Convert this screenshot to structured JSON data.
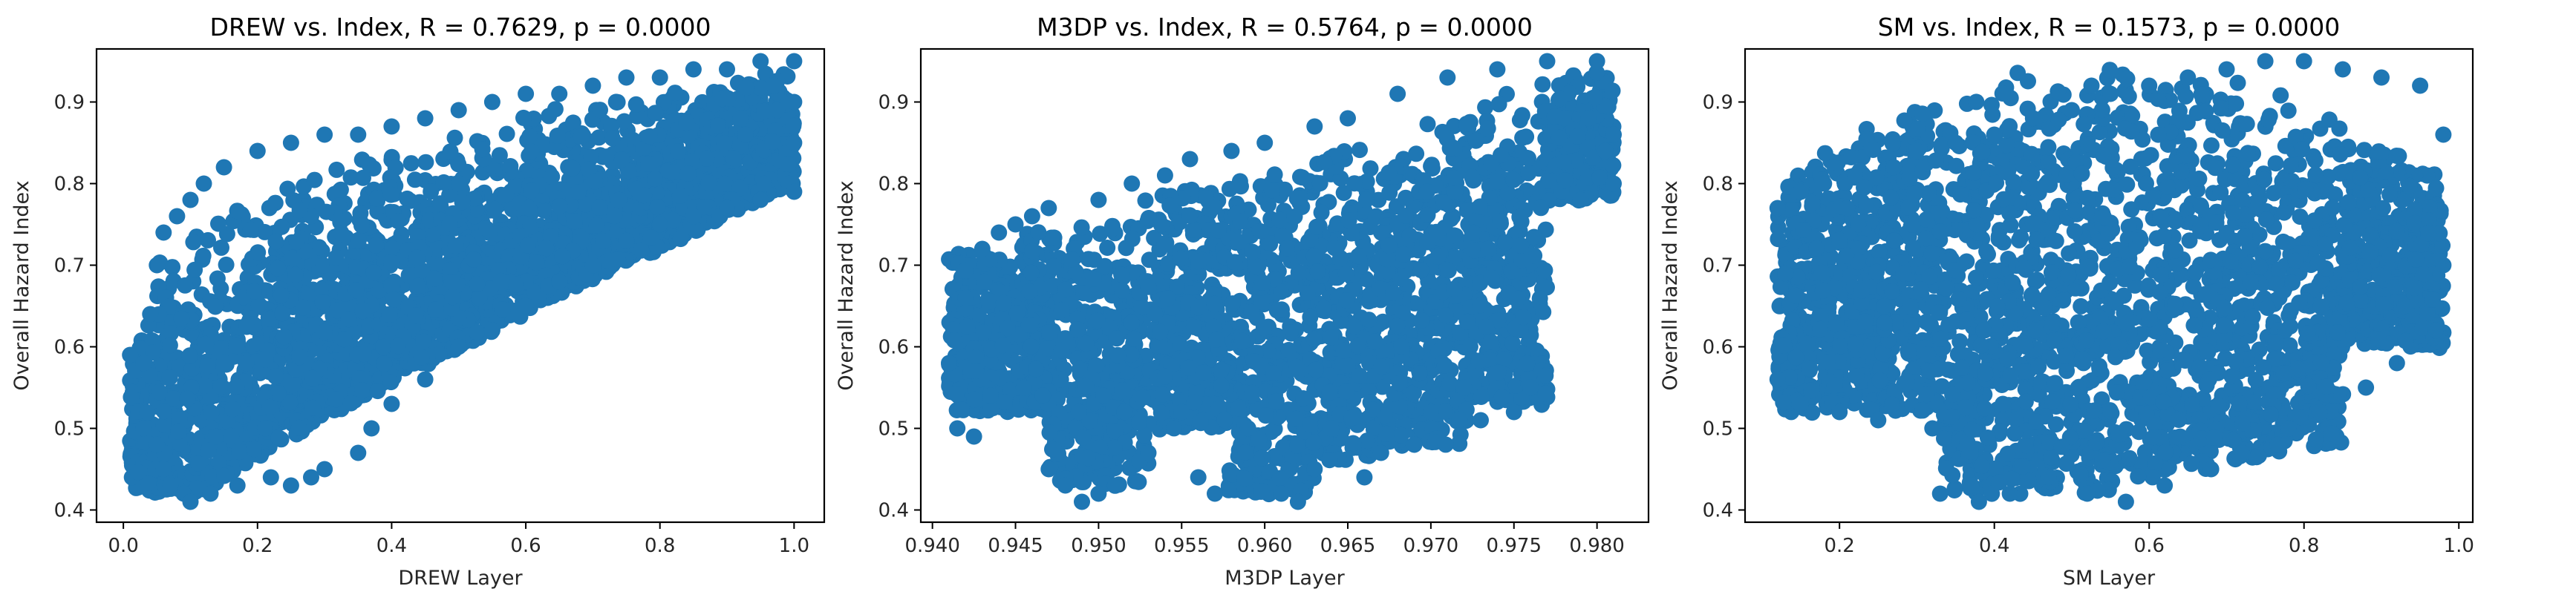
{
  "chart_data": [
    {
      "type": "scatter",
      "title": "DREW vs. Index, R = 0.7629, p = 0.0000",
      "xlabel": "DREW Layer",
      "ylabel": "Overall Hazard Index",
      "xlim": [
        -0.04,
        1.045
      ],
      "ylim": [
        0.385,
        0.965
      ],
      "xticks": [
        0.0,
        0.2,
        0.4,
        0.6,
        0.8,
        1.0
      ],
      "xtick_labels": [
        "0.0",
        "0.2",
        "0.4",
        "0.6",
        "0.8",
        "1.0"
      ],
      "yticks": [
        0.4,
        0.5,
        0.6,
        0.7,
        0.8,
        0.9
      ],
      "ytick_labels": [
        "0.4",
        "0.5",
        "0.6",
        "0.7",
        "0.8",
        "0.9"
      ],
      "color": "#1f77b4",
      "series": [
        {
          "points": [
            [
              0.01,
              0.59
            ],
            [
              0.03,
              0.58
            ],
            [
              0.03,
              0.5
            ],
            [
              0.04,
              0.64
            ],
            [
              0.05,
              0.48
            ],
            [
              0.05,
              0.7
            ],
            [
              0.06,
              0.45
            ],
            [
              0.06,
              0.74
            ],
            [
              0.07,
              0.43
            ],
            [
              0.08,
              0.76
            ],
            [
              0.09,
              0.42
            ],
            [
              0.1,
              0.78
            ],
            [
              0.1,
              0.41
            ],
            [
              0.12,
              0.8
            ],
            [
              0.13,
              0.42
            ],
            [
              0.15,
              0.82
            ],
            [
              0.17,
              0.43
            ],
            [
              0.2,
              0.84
            ],
            [
              0.22,
              0.44
            ],
            [
              0.25,
              0.85
            ],
            [
              0.25,
              0.43
            ],
            [
              0.28,
              0.44
            ],
            [
              0.3,
              0.86
            ],
            [
              0.3,
              0.45
            ],
            [
              0.35,
              0.86
            ],
            [
              0.35,
              0.47
            ],
            [
              0.37,
              0.5
            ],
            [
              0.4,
              0.53
            ],
            [
              0.4,
              0.87
            ],
            [
              0.45,
              0.56
            ],
            [
              0.45,
              0.88
            ],
            [
              0.5,
              0.6
            ],
            [
              0.5,
              0.89
            ],
            [
              0.55,
              0.62
            ],
            [
              0.55,
              0.9
            ],
            [
              0.6,
              0.65
            ],
            [
              0.6,
              0.91
            ],
            [
              0.65,
              0.68
            ],
            [
              0.65,
              0.91
            ],
            [
              0.7,
              0.7
            ],
            [
              0.7,
              0.92
            ],
            [
              0.75,
              0.73
            ],
            [
              0.75,
              0.93
            ],
            [
              0.8,
              0.75
            ],
            [
              0.8,
              0.93
            ],
            [
              0.85,
              0.76
            ],
            [
              0.85,
              0.94
            ],
            [
              0.9,
              0.77
            ],
            [
              0.9,
              0.94
            ],
            [
              0.95,
              0.78
            ],
            [
              0.95,
              0.95
            ],
            [
              1.0,
              0.79
            ],
            [
              1.0,
              0.95
            ],
            [
              1.0,
              0.9
            ],
            [
              1.0,
              0.85
            ],
            [
              0.97,
              0.92
            ],
            [
              0.92,
              0.88
            ]
          ]
        }
      ]
    },
    {
      "type": "scatter",
      "title": "M3DP vs. Index, R = 0.5764, p = 0.0000",
      "xlabel": "M3DP Layer",
      "ylabel": "Overall Hazard Index",
      "xlim": [
        0.9393,
        0.9831
      ],
      "ylim": [
        0.385,
        0.965
      ],
      "xticks": [
        0.94,
        0.945,
        0.95,
        0.955,
        0.96,
        0.965,
        0.97,
        0.975,
        0.98
      ],
      "xtick_labels": [
        "0.940",
        "0.945",
        "0.950",
        "0.955",
        "0.960",
        "0.965",
        "0.970",
        "0.975",
        "0.980"
      ],
      "yticks": [
        0.4,
        0.5,
        0.6,
        0.7,
        0.8,
        0.9
      ],
      "ytick_labels": [
        "0.4",
        "0.5",
        "0.6",
        "0.7",
        "0.8",
        "0.9"
      ],
      "color": "#1f77b4",
      "series": [
        {
          "points": [
            [
              0.941,
              0.58
            ],
            [
              0.9415,
              0.5
            ],
            [
              0.942,
              0.66
            ],
            [
              0.9425,
              0.49
            ],
            [
              0.943,
              0.72
            ],
            [
              0.9435,
              0.54
            ],
            [
              0.944,
              0.74
            ],
            [
              0.945,
              0.75
            ],
            [
              0.9455,
              0.55
            ],
            [
              0.946,
              0.76
            ],
            [
              0.947,
              0.77
            ],
            [
              0.947,
              0.45
            ],
            [
              0.948,
              0.43
            ],
            [
              0.949,
              0.41
            ],
            [
              0.95,
              0.78
            ],
            [
              0.95,
              0.42
            ],
            [
              0.951,
              0.43
            ],
            [
              0.952,
              0.8
            ],
            [
              0.953,
              0.47
            ],
            [
              0.954,
              0.81
            ],
            [
              0.955,
              0.52
            ],
            [
              0.9555,
              0.83
            ],
            [
              0.956,
              0.44
            ],
            [
              0.957,
              0.42
            ],
            [
              0.958,
              0.84
            ],
            [
              0.959,
              0.5
            ],
            [
              0.96,
              0.85
            ],
            [
              0.961,
              0.42
            ],
            [
              0.962,
              0.41
            ],
            [
              0.963,
              0.87
            ],
            [
              0.963,
              0.45
            ],
            [
              0.964,
              0.5
            ],
            [
              0.965,
              0.88
            ],
            [
              0.966,
              0.44
            ],
            [
              0.967,
              0.47
            ],
            [
              0.968,
              0.91
            ],
            [
              0.969,
              0.48
            ],
            [
              0.97,
              0.52
            ],
            [
              0.971,
              0.93
            ],
            [
              0.972,
              0.55
            ],
            [
              0.973,
              0.51
            ],
            [
              0.974,
              0.94
            ],
            [
              0.975,
              0.52
            ],
            [
              0.976,
              0.55
            ],
            [
              0.977,
              0.95
            ],
            [
              0.978,
              0.88
            ],
            [
              0.979,
              0.78
            ],
            [
              0.98,
              0.95
            ],
            [
              0.9805,
              0.84
            ],
            [
              0.981,
              0.8
            ],
            [
              0.981,
              0.86
            ]
          ]
        }
      ]
    },
    {
      "type": "scatter",
      "title": "SM vs. Index, R = 0.1573, p = 0.0000",
      "xlabel": "SM Layer",
      "ylabel": "Overall Hazard Index",
      "xlim": [
        0.078,
        1.018
      ],
      "ylim": [
        0.385,
        0.965
      ],
      "xticks": [
        0.2,
        0.4,
        0.6,
        0.8,
        1.0
      ],
      "xtick_labels": [
        "0.2",
        "0.4",
        "0.6",
        "0.8",
        "1.0"
      ],
      "yticks": [
        0.4,
        0.5,
        0.6,
        0.7,
        0.8,
        0.9
      ],
      "ytick_labels": [
        "0.4",
        "0.5",
        "0.6",
        "0.7",
        "0.8",
        "0.9"
      ],
      "color": "#1f77b4",
      "series": [
        {
          "points": [
            [
              0.12,
              0.77
            ],
            [
              0.12,
              0.56
            ],
            [
              0.13,
              0.69
            ],
            [
              0.15,
              0.79
            ],
            [
              0.15,
              0.53
            ],
            [
              0.18,
              0.8
            ],
            [
              0.2,
              0.52
            ],
            [
              0.22,
              0.81
            ],
            [
              0.25,
              0.51
            ],
            [
              0.27,
              0.82
            ],
            [
              0.3,
              0.84
            ],
            [
              0.32,
              0.5
            ],
            [
              0.33,
              0.42
            ],
            [
              0.35,
              0.85
            ],
            [
              0.37,
              0.43
            ],
            [
              0.38,
              0.41
            ],
            [
              0.4,
              0.86
            ],
            [
              0.42,
              0.42
            ],
            [
              0.45,
              0.88
            ],
            [
              0.47,
              0.44
            ],
            [
              0.5,
              0.89
            ],
            [
              0.52,
              0.42
            ],
            [
              0.55,
              0.91
            ],
            [
              0.57,
              0.41
            ],
            [
              0.6,
              0.92
            ],
            [
              0.62,
              0.43
            ],
            [
              0.65,
              0.93
            ],
            [
              0.68,
              0.45
            ],
            [
              0.7,
              0.94
            ],
            [
              0.72,
              0.47
            ],
            [
              0.75,
              0.95
            ],
            [
              0.78,
              0.5
            ],
            [
              0.8,
              0.95
            ],
            [
              0.82,
              0.52
            ],
            [
              0.85,
              0.94
            ],
            [
              0.88,
              0.55
            ],
            [
              0.9,
              0.93
            ],
            [
              0.92,
              0.58
            ],
            [
              0.95,
              0.92
            ],
            [
              0.97,
              0.62
            ],
            [
              0.98,
              0.86
            ],
            [
              0.98,
              0.7
            ]
          ]
        }
      ]
    }
  ]
}
